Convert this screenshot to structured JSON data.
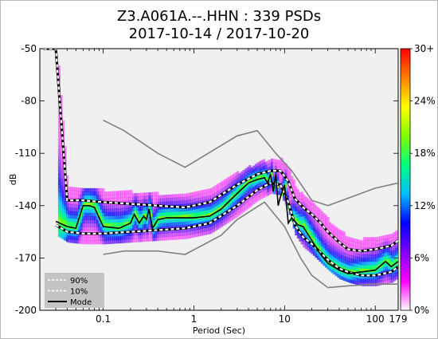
{
  "chart_data": {
    "type": "heatmap",
    "title": "Z3.A061A.--.HHN : 339 PSDs",
    "subtitle": "2017-10-14 / 2017-10-20",
    "xlabel": "Period (Sec)",
    "ylabel": "dB",
    "x_scale": "log",
    "xlim": [
      0.02,
      179
    ],
    "ylim": [
      -200,
      -50
    ],
    "x_ticks": [
      {
        "value": 0.1,
        "label": "0.1"
      },
      {
        "value": 1,
        "label": "1"
      },
      {
        "value": 10,
        "label": "10"
      },
      {
        "value": 100,
        "label": "100"
      },
      {
        "value": 179,
        "label": "179"
      }
    ],
    "y_ticks": [
      -50,
      -80,
      -110,
      -140,
      -170,
      -200
    ],
    "colorbar": {
      "ticks": [
        "0%",
        "6%",
        "12%",
        "18%",
        "24%",
        "30+"
      ],
      "colors": [
        "#ffffff",
        "#ff00ff",
        "#8000ff",
        "#0000ff",
        "#00c0ff",
        "#00ff80",
        "#80ff00",
        "#ffff00",
        "#ff8000",
        "#ff0000"
      ]
    },
    "legend": {
      "position": "bottom-left",
      "entries": [
        "90%",
        "10%",
        "Mode"
      ]
    },
    "noise_models": {
      "nhnm": [
        [
          0.1,
          -91
        ],
        [
          0.17,
          -97
        ],
        [
          0.4,
          -110
        ],
        [
          0.8,
          -118
        ],
        [
          3,
          -100
        ],
        [
          5,
          -97
        ],
        [
          8,
          -110
        ],
        [
          12,
          -120
        ],
        [
          20,
          -137
        ],
        [
          30,
          -140
        ],
        [
          100,
          -130
        ],
        [
          179,
          -127
        ]
      ],
      "nlnm": [
        [
          0.1,
          -168
        ],
        [
          0.17,
          -166
        ],
        [
          0.4,
          -166
        ],
        [
          0.8,
          -168
        ],
        [
          2,
          -157
        ],
        [
          3,
          -148
        ],
        [
          6,
          -138
        ],
        [
          10,
          -152
        ],
        [
          15,
          -170
        ],
        [
          20,
          -180
        ],
        [
          30,
          -187
        ],
        [
          50,
          -186
        ],
        [
          100,
          -185
        ],
        [
          179,
          -185
        ]
      ]
    },
    "series": [
      {
        "name": "90%",
        "x": [
          0.022,
          0.03,
          0.04,
          0.06,
          0.1,
          0.2,
          0.4,
          0.8,
          1.5,
          3,
          5,
          7,
          9,
          11,
          13,
          16,
          20,
          25,
          30,
          40,
          50,
          70,
          100,
          150,
          179
        ],
        "y": [
          -50,
          -50,
          -137,
          -137,
          -138,
          -139,
          -140,
          -141,
          -138,
          -128,
          -122,
          -120,
          -120,
          -126,
          -136,
          -141,
          -145,
          -150,
          -155,
          -161,
          -165,
          -166,
          -165,
          -163,
          -160
        ]
      },
      {
        "name": "10%",
        "x": [
          0.03,
          0.04,
          0.06,
          0.1,
          0.2,
          0.4,
          0.8,
          1.5,
          3,
          5,
          7,
          9,
          11,
          13,
          16,
          20,
          25,
          30,
          40,
          50,
          70,
          100,
          150,
          179
        ],
        "y": [
          -151,
          -155,
          -156,
          -156,
          -155,
          -154,
          -153,
          -150,
          -140,
          -131,
          -127,
          -128,
          -138,
          -151,
          -158,
          -162,
          -167,
          -171,
          -176,
          -178,
          -180,
          -180,
          -178,
          -175
        ]
      },
      {
        "name": "Mode",
        "x": [
          0.03,
          0.04,
          0.05,
          0.06,
          0.07,
          0.08,
          0.1,
          0.15,
          0.2,
          0.22,
          0.25,
          0.28,
          0.3,
          0.32,
          0.35,
          0.4,
          0.5,
          0.7,
          1,
          1.5,
          2,
          3,
          4,
          5,
          6,
          6.5,
          7,
          7.5,
          8,
          8.5,
          9,
          10,
          11,
          12,
          14,
          16,
          20,
          25,
          30,
          40,
          50,
          70,
          100,
          130,
          150,
          179
        ],
        "y": [
          -149,
          -152,
          -153,
          -140,
          -140,
          -141,
          -152,
          -153,
          -150,
          -145,
          -150,
          -146,
          -148,
          -142,
          -153,
          -148,
          -147,
          -147,
          -147,
          -146,
          -142,
          -133,
          -127,
          -125,
          -124,
          -127,
          -122,
          -132,
          -122,
          -140,
          -135,
          -128,
          -150,
          -147,
          -151,
          -152,
          -160,
          -168,
          -173,
          -177,
          -179,
          -178,
          -177,
          -172,
          -175,
          -172
        ]
      }
    ]
  }
}
